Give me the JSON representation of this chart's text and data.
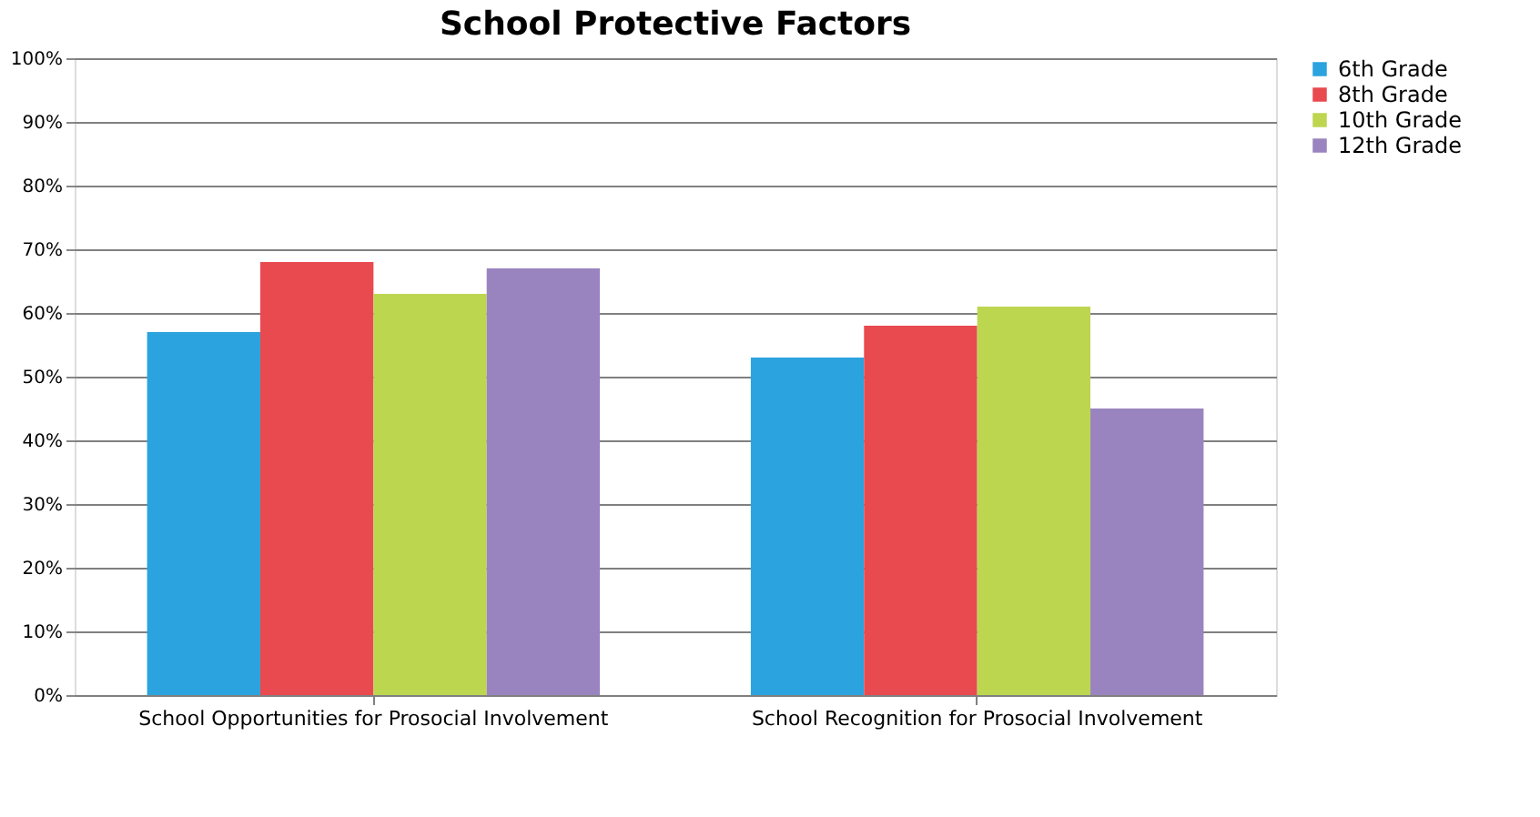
{
  "chart_data": {
    "type": "bar",
    "title": "School Protective Factors",
    "categories": [
      "School Opportunities for Prosocial Involvement",
      "School Recognition for Prosocial Involvement"
    ],
    "series": [
      {
        "name": "6th Grade",
        "color": "#2ba3df",
        "values": [
          57,
          53
        ]
      },
      {
        "name": "8th Grade",
        "color": "#e84a50",
        "values": [
          68,
          58
        ]
      },
      {
        "name": "10th Grade",
        "color": "#bcd650",
        "values": [
          63,
          61
        ]
      },
      {
        "name": "12th Grade",
        "color": "#9a84bf",
        "values": [
          67,
          45
        ]
      }
    ],
    "ylim": [
      0,
      100
    ],
    "yticks": [
      {
        "value": 0,
        "label": "0%"
      },
      {
        "value": 10,
        "label": "10%"
      },
      {
        "value": 20,
        "label": "20%"
      },
      {
        "value": 30,
        "label": "30%"
      },
      {
        "value": 40,
        "label": "40%"
      },
      {
        "value": 50,
        "label": "50%"
      },
      {
        "value": 60,
        "label": "60%"
      },
      {
        "value": 70,
        "label": "70%"
      },
      {
        "value": 80,
        "label": "80%"
      },
      {
        "value": 90,
        "label": "90%"
      },
      {
        "value": 100,
        "label": "100%"
      }
    ],
    "grid": "y",
    "legend": "right"
  }
}
